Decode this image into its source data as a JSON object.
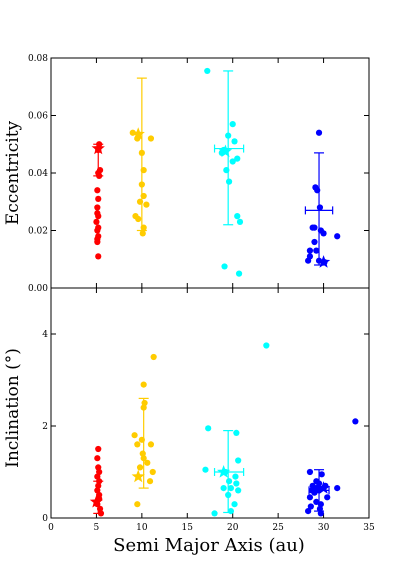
{
  "chart_data": [
    {
      "type": "scatter",
      "ylabel": "Eccentricity",
      "xlim": [
        0,
        35
      ],
      "ylim": [
        0,
        0.08
      ],
      "yticks": [
        "0.00",
        "0.02",
        "0.04",
        "0.06",
        "0.08"
      ],
      "series": [
        {
          "color": "#ff0000",
          "points": [
            [
              5.3,
              0.05
            ],
            [
              5.2,
              0.048
            ],
            [
              5.4,
              0.041
            ],
            [
              5.2,
              0.04
            ],
            [
              5.3,
              0.039
            ],
            [
              5.1,
              0.034
            ],
            [
              5.2,
              0.031
            ],
            [
              5.1,
              0.028
            ],
            [
              5.1,
              0.026
            ],
            [
              5.2,
              0.025
            ],
            [
              5.0,
              0.023
            ],
            [
              5.2,
              0.021
            ],
            [
              5.1,
              0.02
            ],
            [
              5.2,
              0.018
            ],
            [
              5.1,
              0.017
            ],
            [
              5.1,
              0.016
            ],
            [
              5.2,
              0.011
            ]
          ],
          "star": [
            5.2,
            0.0485
          ],
          "mean": [
            5.2,
            0.0485
          ],
          "yerr": [
            0.039,
            0.05
          ]
        },
        {
          "color": "#ffcc00",
          "points": [
            [
              9.0,
              0.054
            ],
            [
              11.0,
              0.052
            ],
            [
              9.5,
              0.052
            ],
            [
              10.0,
              0.047
            ],
            [
              10.2,
              0.041
            ],
            [
              10.0,
              0.036
            ],
            [
              10.2,
              0.032
            ],
            [
              9.8,
              0.03
            ],
            [
              10.5,
              0.029
            ],
            [
              9.3,
              0.025
            ],
            [
              9.6,
              0.024
            ],
            [
              10.2,
              0.021
            ],
            [
              10.1,
              0.019
            ]
          ],
          "star": [
            9.6,
            0.0535
          ],
          "mean": [
            10.0,
            0.047
          ],
          "yerr": [
            0.02,
            0.073
          ]
        },
        {
          "color": "#00ffff",
          "points": [
            [
              17.2,
              0.0755
            ],
            [
              20.0,
              0.057
            ],
            [
              19.5,
              0.053
            ],
            [
              20.2,
              0.051
            ],
            [
              19.0,
              0.048
            ],
            [
              18.8,
              0.047
            ],
            [
              20.5,
              0.045
            ],
            [
              20.0,
              0.044
            ],
            [
              19.3,
              0.041
            ],
            [
              19.6,
              0.037
            ],
            [
              20.5,
              0.025
            ],
            [
              20.8,
              0.023
            ],
            [
              19.1,
              0.0075
            ],
            [
              20.7,
              0.005
            ]
          ],
          "star": [
            19.2,
            0.0475
          ],
          "mean": [
            19.5,
            0.0485
          ],
          "yerr": [
            0.022,
            0.0755
          ],
          "xerr": [
            18.0,
            21.2
          ]
        },
        {
          "color": "#0000ff",
          "points": [
            [
              29.5,
              0.054
            ],
            [
              29.1,
              0.035
            ],
            [
              29.3,
              0.034
            ],
            [
              29.6,
              0.028
            ],
            [
              28.8,
              0.021
            ],
            [
              29.0,
              0.021
            ],
            [
              29.7,
              0.02
            ],
            [
              30.0,
              0.019
            ],
            [
              31.5,
              0.018
            ],
            [
              29.0,
              0.016
            ],
            [
              28.5,
              0.013
            ],
            [
              29.2,
              0.013
            ],
            [
              28.5,
              0.011
            ],
            [
              28.3,
              0.0095
            ],
            [
              29.5,
              0.0095
            ],
            [
              30.1,
              0.009
            ]
          ],
          "star": [
            30.0,
            0.009
          ],
          "mean": [
            29.5,
            0.027
          ],
          "yerr": [
            0.008,
            0.047
          ],
          "xerr": [
            28.0,
            31.0
          ]
        }
      ]
    },
    {
      "type": "scatter",
      "ylabel": "Inclination (°)",
      "xlabel": "Semi Major Axis (au)",
      "xlim": [
        0,
        35
      ],
      "ylim": [
        0,
        5
      ],
      "xticks": [
        "0",
        "5",
        "10",
        "15",
        "20",
        "25",
        "30",
        "35"
      ],
      "yticks": [
        "0",
        "2",
        "4"
      ],
      "series": [
        {
          "color": "#ff0000",
          "points": [
            [
              5.2,
              1.5
            ],
            [
              5.1,
              1.3
            ],
            [
              5.2,
              1.1
            ],
            [
              5.3,
              1.0
            ],
            [
              5.1,
              0.9
            ],
            [
              5.3,
              0.8
            ],
            [
              5.2,
              0.7
            ],
            [
              5.1,
              0.6
            ],
            [
              5.3,
              0.5
            ],
            [
              5.2,
              0.4
            ],
            [
              5.1,
              0.3
            ],
            [
              5.4,
              0.2
            ],
            [
              5.5,
              0.1
            ],
            [
              5.3,
              0.42
            ]
          ],
          "star": [
            5.0,
            0.35
          ],
          "mean": [
            5.2,
            0.45
          ],
          "yerr": [
            0.1,
            0.8
          ]
        },
        {
          "color": "#ffcc00",
          "points": [
            [
              11.3,
              3.5
            ],
            [
              10.2,
              2.9
            ],
            [
              10.3,
              2.5
            ],
            [
              10.2,
              2.4
            ],
            [
              9.2,
              1.8
            ],
            [
              10.0,
              1.7
            ],
            [
              11.0,
              1.6
            ],
            [
              9.5,
              1.6
            ],
            [
              10.1,
              1.4
            ],
            [
              10.2,
              1.3
            ],
            [
              10.6,
              1.2
            ],
            [
              9.8,
              1.1
            ],
            [
              11.2,
              1.0
            ],
            [
              10.9,
              0.8
            ],
            [
              9.5,
              0.3
            ]
          ],
          "star": [
            9.6,
            0.9
          ],
          "mean": [
            10.2,
            1.6
          ],
          "yerr": [
            0.65,
            2.6
          ]
        },
        {
          "color": "#00ffff",
          "points": [
            [
              23.7,
              3.75
            ],
            [
              17.3,
              1.95
            ],
            [
              20.4,
              1.85
            ],
            [
              20.6,
              1.25
            ],
            [
              17.0,
              1.05
            ],
            [
              19.2,
              1.0
            ],
            [
              20.3,
              0.9
            ],
            [
              19.6,
              0.8
            ],
            [
              19.0,
              0.65
            ],
            [
              20.4,
              0.75
            ],
            [
              19.8,
              0.65
            ],
            [
              20.6,
              0.6
            ],
            [
              19.5,
              0.5
            ],
            [
              20.2,
              0.3
            ],
            [
              19.8,
              0.15
            ],
            [
              18.0,
              0.1
            ]
          ],
          "star": [
            19.0,
            1.0
          ],
          "mean": [
            19.5,
            1.0
          ],
          "yerr": [
            0.12,
            1.9
          ],
          "xerr": [
            18.0,
            21.2
          ]
        },
        {
          "color": "#0000ff",
          "points": [
            [
              33.5,
              2.1
            ],
            [
              28.5,
              1.0
            ],
            [
              29.8,
              0.95
            ],
            [
              29.2,
              0.8
            ],
            [
              29.5,
              0.75
            ],
            [
              28.8,
              0.7
            ],
            [
              30.2,
              0.7
            ],
            [
              29.2,
              0.65
            ],
            [
              28.7,
              0.6
            ],
            [
              29.5,
              0.6
            ],
            [
              29.0,
              0.55
            ],
            [
              31.5,
              0.65
            ],
            [
              28.5,
              0.45
            ],
            [
              30.4,
              0.45
            ],
            [
              29.2,
              0.35
            ],
            [
              29.7,
              0.3
            ],
            [
              28.6,
              0.25
            ],
            [
              29.6,
              0.2
            ],
            [
              28.3,
              0.15
            ],
            [
              29.7,
              0.1
            ]
          ],
          "star": [
            30.0,
            0.65
          ],
          "mean": [
            29.5,
            0.6
          ],
          "yerr": [
            0.15,
            1.05
          ],
          "xerr": [
            28.4,
            30.6
          ]
        }
      ]
    }
  ]
}
